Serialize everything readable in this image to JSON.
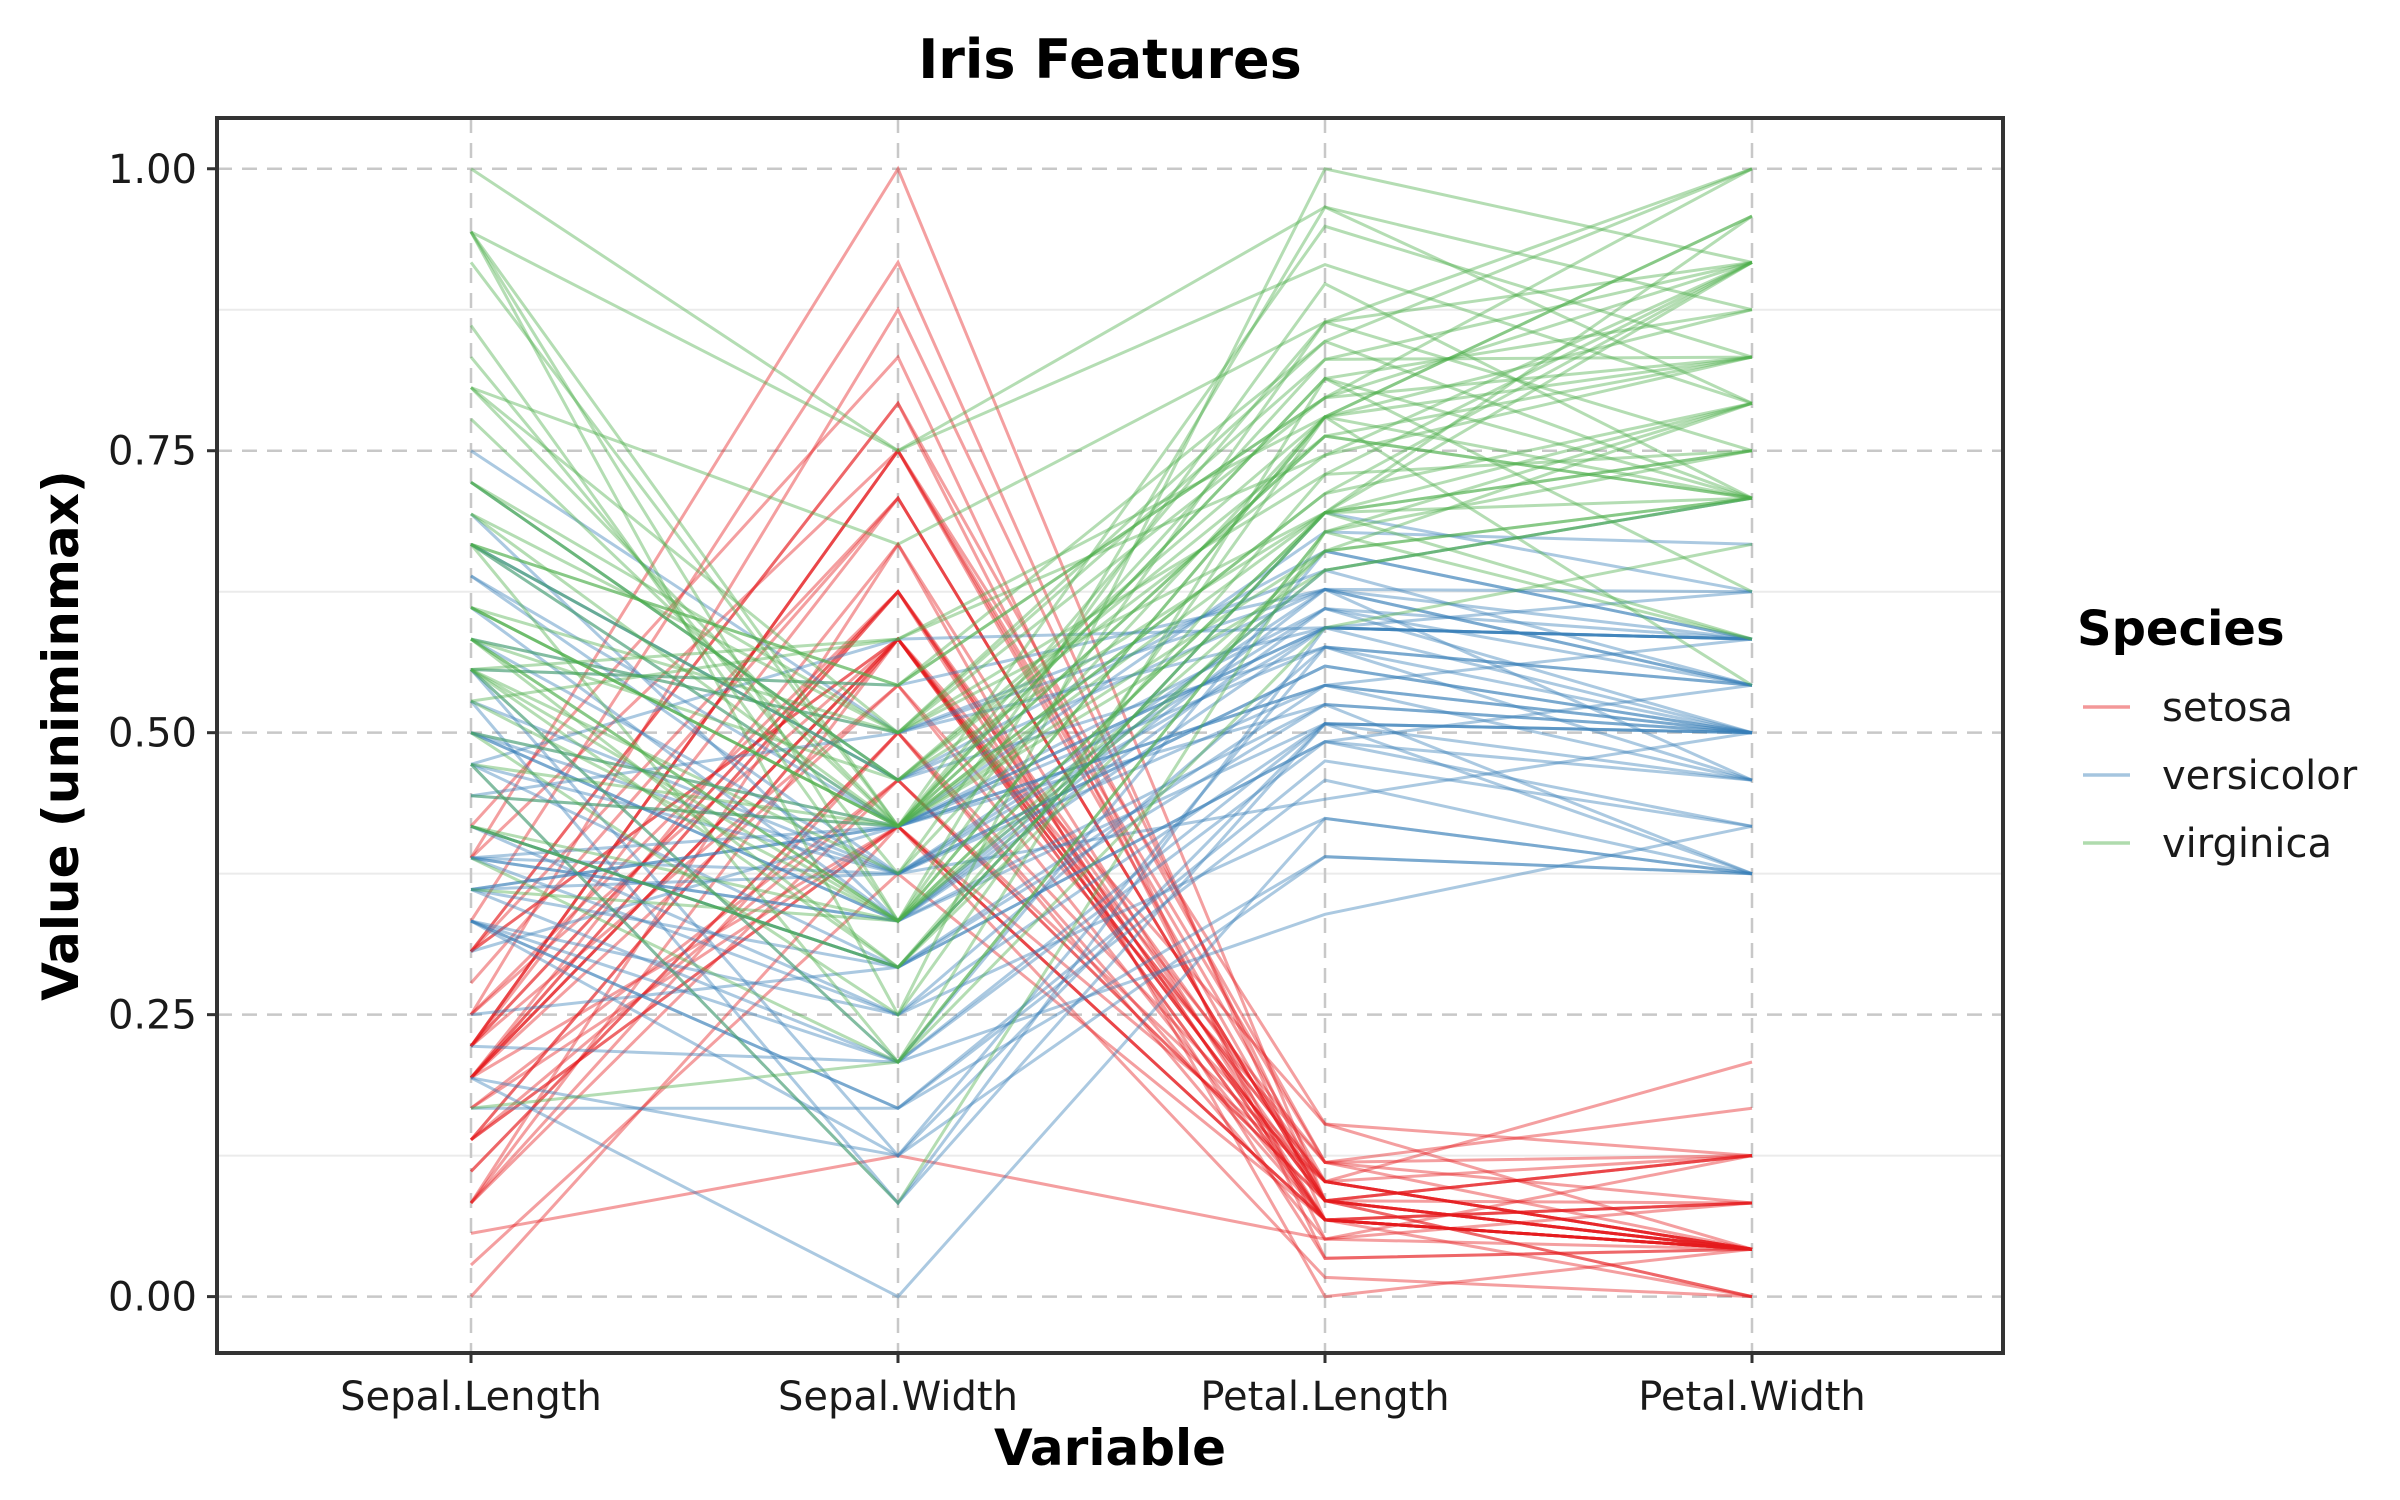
{
  "chart_data": {
    "type": "line",
    "subtype": "parallel-coordinates",
    "title": "Iris Features",
    "xlabel": "Variable",
    "ylabel": "Value (uniminmax)",
    "categories": [
      "Sepal.Length",
      "Sepal.Width",
      "Petal.Length",
      "Petal.Width"
    ],
    "ylim": [
      -0.05,
      1.045
    ],
    "yticks": [
      0,
      0.25,
      0.5,
      0.75,
      1.0
    ],
    "ytick_labels": [
      "0.00",
      "0.25",
      "0.50",
      "0.75",
      "1.00"
    ],
    "grid": true,
    "legend": {
      "title": "Species",
      "placement": "right"
    },
    "series": [
      {
        "name": "setosa",
        "color": "#e41a1c",
        "lines": [
          [
            0.222,
            0.625,
            0.068,
            0.042
          ],
          [
            0.167,
            0.417,
            0.068,
            0.042
          ],
          [
            0.111,
            0.5,
            0.051,
            0.042
          ],
          [
            0.083,
            0.458,
            0.085,
            0.042
          ],
          [
            0.194,
            0.667,
            0.068,
            0.042
          ],
          [
            0.306,
            0.792,
            0.119,
            0.125
          ],
          [
            0.083,
            0.583,
            0.068,
            0.083
          ],
          [
            0.194,
            0.583,
            0.085,
            0.042
          ],
          [
            0.028,
            0.375,
            0.068,
            0.042
          ],
          [
            0.167,
            0.458,
            0.085,
            0.0
          ],
          [
            0.306,
            0.708,
            0.085,
            0.042
          ],
          [
            0.139,
            0.583,
            0.102,
            0.042
          ],
          [
            0.139,
            0.417,
            0.068,
            0.0
          ],
          [
            0.0,
            0.417,
            0.017,
            0.0
          ],
          [
            0.417,
            0.833,
            0.034,
            0.042
          ],
          [
            0.389,
            1.0,
            0.085,
            0.125
          ],
          [
            0.306,
            0.792,
            0.051,
            0.125
          ],
          [
            0.222,
            0.625,
            0.068,
            0.083
          ],
          [
            0.389,
            0.75,
            0.119,
            0.083
          ],
          [
            0.222,
            0.75,
            0.085,
            0.083
          ],
          [
            0.306,
            0.583,
            0.119,
            0.042
          ],
          [
            0.222,
            0.708,
            0.085,
            0.125
          ],
          [
            0.083,
            0.667,
            0.0,
            0.042
          ],
          [
            0.222,
            0.542,
            0.119,
            0.167
          ],
          [
            0.139,
            0.583,
            0.153,
            0.042
          ],
          [
            0.194,
            0.417,
            0.102,
            0.042
          ],
          [
            0.194,
            0.583,
            0.102,
            0.125
          ],
          [
            0.25,
            0.625,
            0.085,
            0.042
          ],
          [
            0.25,
            0.583,
            0.068,
            0.042
          ],
          [
            0.111,
            0.5,
            0.102,
            0.042
          ],
          [
            0.139,
            0.458,
            0.102,
            0.042
          ],
          [
            0.306,
            0.583,
            0.085,
            0.125
          ],
          [
            0.25,
            0.875,
            0.085,
            0.0
          ],
          [
            0.333,
            0.917,
            0.068,
            0.042
          ],
          [
            0.194,
            0.583,
            0.085,
            0.042
          ],
          [
            0.194,
            0.625,
            0.034,
            0.042
          ],
          [
            0.056,
            0.125,
            0.051,
            0.083
          ],
          [
            0.194,
            0.625,
            0.102,
            0.208
          ],
          [
            0.222,
            0.75,
            0.153,
            0.125
          ],
          [
            0.139,
            0.417,
            0.068,
            0.083
          ],
          [
            0.222,
            0.75,
            0.102,
            0.042
          ],
          [
            0.083,
            0.5,
            0.068,
            0.042
          ],
          [
            0.278,
            0.708,
            0.085,
            0.042
          ],
          [
            0.194,
            0.542,
            0.068,
            0.042
          ]
        ]
      },
      {
        "name": "versicolor",
        "color": "#377eb8",
        "lines": [
          [
            0.75,
            0.5,
            0.627,
            0.542
          ],
          [
            0.583,
            0.5,
            0.593,
            0.583
          ],
          [
            0.722,
            0.458,
            0.661,
            0.583
          ],
          [
            0.333,
            0.125,
            0.508,
            0.5
          ],
          [
            0.611,
            0.333,
            0.61,
            0.583
          ],
          [
            0.389,
            0.333,
            0.593,
            0.5
          ],
          [
            0.556,
            0.542,
            0.627,
            0.625
          ],
          [
            0.167,
            0.167,
            0.39,
            0.375
          ],
          [
            0.639,
            0.375,
            0.61,
            0.5
          ],
          [
            0.25,
            0.292,
            0.492,
            0.542
          ],
          [
            0.194,
            0.0,
            0.424,
            0.375
          ],
          [
            0.444,
            0.417,
            0.542,
            0.583
          ],
          [
            0.472,
            0.083,
            0.508,
            0.375
          ],
          [
            0.5,
            0.375,
            0.627,
            0.542
          ],
          [
            0.361,
            0.375,
            0.441,
            0.5
          ],
          [
            0.667,
            0.458,
            0.576,
            0.542
          ],
          [
            0.361,
            0.417,
            0.593,
            0.583
          ],
          [
            0.417,
            0.292,
            0.525,
            0.375
          ],
          [
            0.528,
            0.083,
            0.593,
            0.583
          ],
          [
            0.361,
            0.208,
            0.492,
            0.417
          ],
          [
            0.444,
            0.5,
            0.644,
            0.708
          ],
          [
            0.5,
            0.333,
            0.508,
            0.5
          ],
          [
            0.556,
            0.208,
            0.661,
            0.583
          ],
          [
            0.5,
            0.333,
            0.627,
            0.458
          ],
          [
            0.583,
            0.375,
            0.559,
            0.5
          ],
          [
            0.639,
            0.417,
            0.576,
            0.542
          ],
          [
            0.694,
            0.333,
            0.644,
            0.542
          ],
          [
            0.667,
            0.417,
            0.678,
            0.667
          ],
          [
            0.472,
            0.375,
            0.593,
            0.583
          ],
          [
            0.389,
            0.25,
            0.424,
            0.375
          ],
          [
            0.333,
            0.167,
            0.475,
            0.417
          ],
          [
            0.333,
            0.167,
            0.458,
            0.375
          ],
          [
            0.417,
            0.292,
            0.492,
            0.458
          ],
          [
            0.472,
            0.292,
            0.695,
            0.625
          ],
          [
            0.306,
            0.417,
            0.593,
            0.583
          ],
          [
            0.472,
            0.583,
            0.593,
            0.625
          ],
          [
            0.667,
            0.458,
            0.627,
            0.583
          ],
          [
            0.556,
            0.125,
            0.576,
            0.5
          ],
          [
            0.361,
            0.417,
            0.525,
            0.5
          ],
          [
            0.333,
            0.208,
            0.508,
            0.5
          ],
          [
            0.333,
            0.25,
            0.576,
            0.458
          ],
          [
            0.5,
            0.417,
            0.61,
            0.542
          ],
          [
            0.417,
            0.25,
            0.508,
            0.458
          ],
          [
            0.194,
            0.125,
            0.39,
            0.375
          ],
          [
            0.361,
            0.292,
            0.542,
            0.5
          ],
          [
            0.389,
            0.417,
            0.542,
            0.458
          ],
          [
            0.389,
            0.375,
            0.542,
            0.5
          ],
          [
            0.528,
            0.375,
            0.559,
            0.5
          ],
          [
            0.222,
            0.208,
            0.339,
            0.417
          ],
          [
            0.389,
            0.333,
            0.525,
            0.5
          ]
        ]
      },
      {
        "name": "virginica",
        "color": "#4daf4a",
        "lines": [
          [
            0.556,
            0.542,
            0.847,
            1.0
          ],
          [
            0.417,
            0.292,
            0.695,
            0.75
          ],
          [
            0.778,
            0.417,
            0.831,
            0.833
          ],
          [
            0.556,
            0.375,
            0.78,
            0.708
          ],
          [
            0.611,
            0.417,
            0.814,
            0.875
          ],
          [
            0.917,
            0.417,
            0.949,
            0.833
          ],
          [
            0.167,
            0.208,
            0.593,
            0.667
          ],
          [
            0.833,
            0.375,
            0.898,
            0.708
          ],
          [
            0.667,
            0.208,
            0.814,
            0.708
          ],
          [
            0.806,
            0.667,
            0.864,
            1.0
          ],
          [
            0.611,
            0.5,
            0.695,
            0.792
          ],
          [
            0.583,
            0.292,
            0.729,
            0.75
          ],
          [
            0.694,
            0.417,
            0.763,
            0.833
          ],
          [
            0.389,
            0.208,
            0.678,
            0.792
          ],
          [
            0.417,
            0.333,
            0.695,
            0.958
          ],
          [
            0.583,
            0.5,
            0.729,
            0.917
          ],
          [
            0.611,
            0.417,
            0.763,
            0.708
          ],
          [
            0.944,
            0.75,
            0.966,
            0.875
          ],
          [
            0.944,
            0.25,
            1.0,
            0.917
          ],
          [
            0.472,
            0.083,
            0.678,
            0.583
          ],
          [
            0.722,
            0.5,
            0.797,
            0.917
          ],
          [
            0.361,
            0.333,
            0.661,
            0.792
          ],
          [
            0.944,
            0.333,
            0.966,
            0.792
          ],
          [
            0.556,
            0.292,
            0.661,
            0.708
          ],
          [
            0.667,
            0.542,
            0.797,
            0.833
          ],
          [
            0.806,
            0.5,
            0.847,
            0.708
          ],
          [
            0.528,
            0.333,
            0.644,
            0.708
          ],
          [
            0.5,
            0.417,
            0.661,
            0.708
          ],
          [
            0.583,
            0.333,
            0.78,
            0.833
          ],
          [
            0.806,
            0.417,
            0.814,
            0.625
          ],
          [
            0.861,
            0.333,
            0.864,
            0.75
          ],
          [
            1.0,
            0.75,
            0.915,
            0.792
          ],
          [
            0.583,
            0.333,
            0.78,
            0.875
          ],
          [
            0.556,
            0.333,
            0.695,
            0.583
          ],
          [
            0.5,
            0.25,
            0.78,
            0.542
          ],
          [
            0.944,
            0.417,
            0.864,
            0.917
          ],
          [
            0.556,
            0.583,
            0.78,
            0.958
          ],
          [
            0.583,
            0.458,
            0.763,
            0.708
          ],
          [
            0.472,
            0.417,
            0.644,
            0.708
          ],
          [
            0.722,
            0.458,
            0.746,
            0.833
          ],
          [
            0.667,
            0.458,
            0.78,
            0.958
          ],
          [
            0.722,
            0.458,
            0.695,
            0.917
          ],
          [
            0.417,
            0.292,
            0.695,
            0.75
          ],
          [
            0.694,
            0.5,
            0.831,
            0.917
          ],
          [
            0.667,
            0.542,
            0.797,
            1.0
          ],
          [
            0.667,
            0.417,
            0.712,
            0.917
          ],
          [
            0.556,
            0.208,
            0.678,
            0.75
          ],
          [
            0.611,
            0.417,
            0.712,
            0.792
          ],
          [
            0.528,
            0.583,
            0.746,
            0.917
          ],
          [
            0.444,
            0.417,
            0.695,
            0.708
          ]
        ]
      }
    ]
  }
}
